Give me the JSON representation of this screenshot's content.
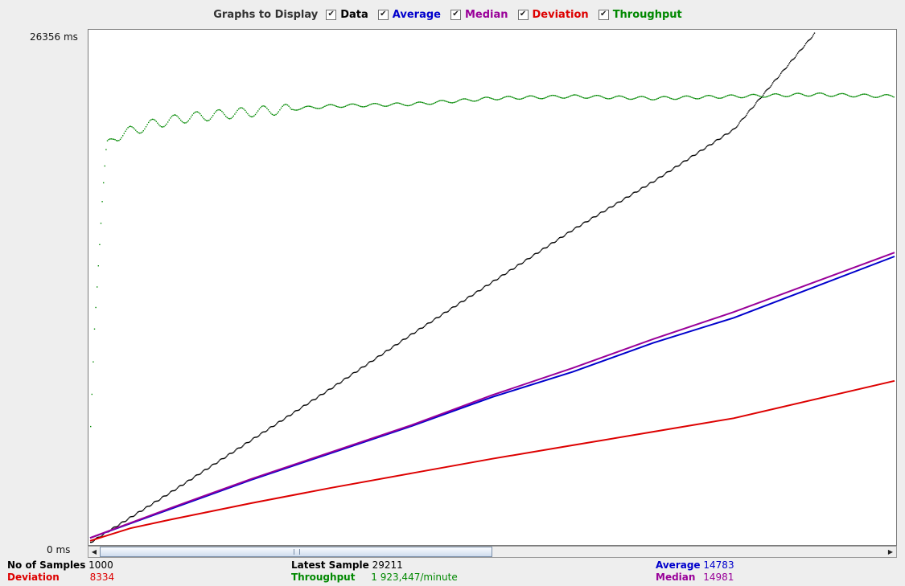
{
  "legend": {
    "title": "Graphs to Display",
    "items": [
      {
        "label": "Data",
        "color": "#000000",
        "checked": true
      },
      {
        "label": "Average",
        "color": "#0000cc",
        "checked": true
      },
      {
        "label": "Median",
        "color": "#990099",
        "checked": true
      },
      {
        "label": "Deviation",
        "color": "#dd0000",
        "checked": true
      },
      {
        "label": "Throughput",
        "color": "#008800",
        "checked": true
      }
    ]
  },
  "axis": {
    "max_label": "26356  ms",
    "min_label": "0  ms"
  },
  "stats": {
    "samples_label": "No of Samples",
    "samples_value": "1000",
    "deviation_label": "Deviation",
    "deviation_value": "8334",
    "latest_label": "Latest Sample",
    "latest_value": "29211",
    "throughput_label": "Throughput",
    "throughput_value": "1 923,447/minute",
    "average_label": "Average",
    "average_value": "14783",
    "median_label": "Median",
    "median_value": "14981"
  },
  "chart_data": {
    "type": "line",
    "xlim": [
      0,
      1000
    ],
    "ylim": [
      0,
      26356
    ],
    "series": [
      {
        "name": "Data",
        "color": "#000000",
        "style": "dots",
        "x": [
          0,
          100,
          200,
          300,
          400,
          500,
          600,
          700,
          800,
          900
        ],
        "y": [
          0,
          2600,
          5300,
          8000,
          10800,
          13500,
          16200,
          18700,
          21400,
          26356
        ]
      },
      {
        "name": "Average",
        "color": "#0000cc",
        "style": "line",
        "x": [
          0,
          100,
          200,
          300,
          400,
          500,
          600,
          700,
          800,
          1000
        ],
        "y": [
          200,
          1700,
          3200,
          4600,
          6000,
          7500,
          8800,
          10300,
          11600,
          14783
        ]
      },
      {
        "name": "Median",
        "color": "#990099",
        "style": "line",
        "x": [
          0,
          100,
          200,
          300,
          400,
          500,
          600,
          700,
          800,
          1000
        ],
        "y": [
          200,
          1750,
          3250,
          4650,
          6050,
          7600,
          9000,
          10500,
          11900,
          14981
        ]
      },
      {
        "name": "Deviation",
        "color": "#dd0000",
        "style": "line",
        "x": [
          0,
          50,
          100,
          200,
          300,
          400,
          500,
          600,
          700,
          800,
          1000
        ],
        "y": [
          50,
          700,
          1150,
          2000,
          2800,
          3550,
          4300,
          5000,
          5700,
          6400,
          8334
        ]
      },
      {
        "name": "Throughput",
        "color": "#008800",
        "style": "dots",
        "x": [
          0,
          5,
          10,
          15,
          20,
          30,
          50,
          80,
          120,
          200,
          300,
          400,
          500,
          600,
          700,
          800,
          900,
          1000
        ],
        "y": [
          6000,
          11500,
          14800,
          18000,
          20500,
          21000,
          21300,
          21700,
          22000,
          22300,
          22600,
          22700,
          23000,
          23100,
          23000,
          23100,
          23200,
          23100
        ]
      }
    ]
  }
}
